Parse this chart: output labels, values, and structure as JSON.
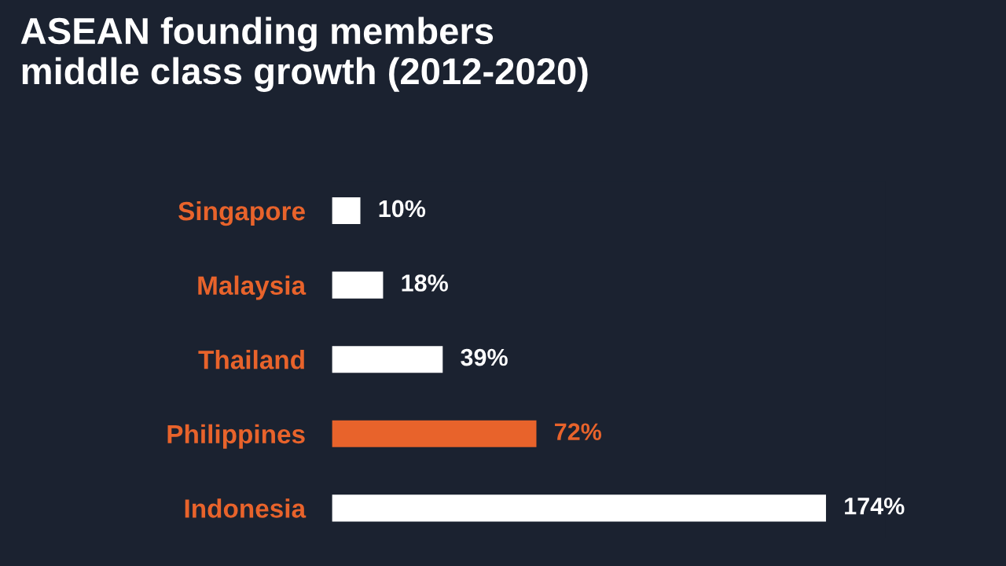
{
  "chart_data": {
    "type": "bar",
    "orientation": "horizontal",
    "title": "ASEAN founding members\nmiddle class growth (2012-2020)",
    "categories": [
      "Singapore",
      "Malaysia",
      "Thailand",
      "Philippines",
      "Indonesia"
    ],
    "values": [
      10,
      18,
      39,
      72,
      174
    ],
    "colors": [
      "#ffffff",
      "#ffffff",
      "#ffffff",
      "#e8632b",
      "#ffffff"
    ],
    "value_labels": [
      "10%",
      "18%",
      "39%",
      "72%",
      "174%"
    ],
    "grid": false
  }
}
